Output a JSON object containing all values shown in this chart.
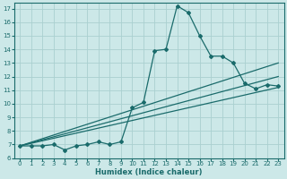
{
  "xlabel": "Humidex (Indice chaleur)",
  "bg_color": "#cce8e8",
  "line_color": "#1a6b6b",
  "grid_color": "#aad0d0",
  "xlim": [
    -0.5,
    23.5
  ],
  "ylim": [
    6,
    17.4
  ],
  "xticks": [
    0,
    1,
    2,
    3,
    4,
    5,
    6,
    7,
    8,
    9,
    10,
    11,
    12,
    13,
    14,
    15,
    16,
    17,
    18,
    19,
    20,
    21,
    22,
    23
  ],
  "yticks": [
    6,
    7,
    8,
    9,
    10,
    11,
    12,
    13,
    14,
    15,
    16,
    17
  ],
  "curve_x": [
    0,
    1,
    2,
    3,
    4,
    5,
    6,
    7,
    8,
    9,
    10,
    11,
    12,
    13,
    14,
    15,
    16,
    17,
    18,
    19,
    20,
    21,
    22,
    23
  ],
  "curve_y": [
    6.9,
    6.9,
    6.9,
    7.0,
    6.6,
    6.9,
    7.0,
    7.2,
    7.0,
    7.2,
    9.7,
    10.1,
    13.9,
    14.0,
    17.2,
    16.7,
    15.0,
    13.5,
    13.5,
    13.0,
    11.5,
    11.1,
    11.4,
    11.3
  ],
  "line2_x": [
    0,
    23
  ],
  "line2_y": [
    6.9,
    13.0
  ],
  "line3_x": [
    0,
    23
  ],
  "line3_y": [
    6.9,
    12.0
  ],
  "line4_x": [
    0,
    23
  ],
  "line4_y": [
    6.9,
    11.2
  ],
  "xlabel_fontsize": 6,
  "tick_fontsize": 5,
  "marker": "D",
  "markersize": 2.0,
  "linewidth": 0.9
}
